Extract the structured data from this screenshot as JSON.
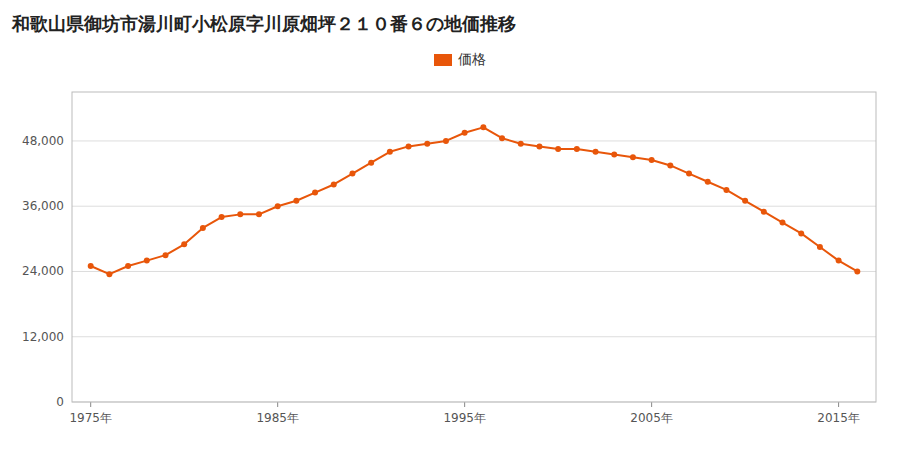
{
  "chart_data": {
    "type": "line",
    "title": "和歌山県御坊市湯川町小松原字川原畑坪２１０番６の地価推移",
    "x": [
      1975,
      1976,
      1977,
      1978,
      1979,
      1980,
      1981,
      1982,
      1983,
      1984,
      1985,
      1986,
      1987,
      1988,
      1989,
      1990,
      1991,
      1992,
      1993,
      1994,
      1995,
      1996,
      1997,
      1998,
      1999,
      2000,
      2001,
      2002,
      2003,
      2004,
      2005,
      2006,
      2007,
      2008,
      2009,
      2010,
      2011,
      2012,
      2013,
      2014,
      2015,
      2016
    ],
    "series": [
      {
        "name": "価格",
        "color": "#E8560A",
        "marker": "circle",
        "values": [
          25000,
          23500,
          25000,
          26000,
          27000,
          29000,
          32000,
          34000,
          34500,
          34500,
          36000,
          37000,
          38500,
          40000,
          42000,
          44000,
          46000,
          47000,
          47500,
          48000,
          49500,
          50500,
          48500,
          47500,
          47000,
          46500,
          46500,
          46000,
          45500,
          45000,
          44500,
          43500,
          42000,
          40500,
          39000,
          37000,
          35000,
          33000,
          31000,
          28500,
          26000,
          24000
        ]
      }
    ],
    "xlim": [
      1974,
      2017
    ],
    "xticks": [
      {
        "value": 1975,
        "label": "1975年"
      },
      {
        "value": 1985,
        "label": "1985年"
      },
      {
        "value": 1995,
        "label": "1995年"
      },
      {
        "value": 2005,
        "label": "2005年"
      },
      {
        "value": 2015,
        "label": "2015年"
      }
    ],
    "ylim": [
      0,
      57000
    ],
    "yticks": [
      0,
      {
        "value": 12000,
        "label": "12,000"
      },
      {
        "value": 24000,
        "label": "24,000"
      },
      {
        "value": 36000,
        "label": "36,000"
      },
      {
        "value": 48000,
        "label": "48,000"
      }
    ],
    "grid": true,
    "legend": "top"
  }
}
